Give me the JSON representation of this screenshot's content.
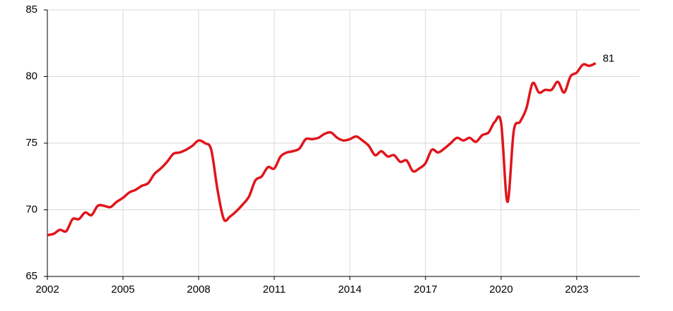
{
  "chart_data": {
    "type": "line",
    "x": [
      2002,
      2002.25,
      2002.5,
      2002.75,
      2003,
      2003.25,
      2003.5,
      2003.75,
      2004,
      2004.25,
      2004.5,
      2004.75,
      2005,
      2005.25,
      2005.5,
      2005.75,
      2006,
      2006.25,
      2006.5,
      2006.75,
      2007,
      2007.25,
      2007.5,
      2007.75,
      2008,
      2008.25,
      2008.5,
      2008.75,
      2009,
      2009.25,
      2009.5,
      2009.75,
      2010,
      2010.25,
      2010.5,
      2010.75,
      2011,
      2011.25,
      2011.5,
      2011.75,
      2012,
      2012.25,
      2012.5,
      2012.75,
      2013,
      2013.25,
      2013.5,
      2013.75,
      2014,
      2014.25,
      2014.5,
      2014.75,
      2015,
      2015.25,
      2015.5,
      2015.75,
      2016,
      2016.25,
      2016.5,
      2016.75,
      2017,
      2017.25,
      2017.5,
      2017.75,
      2018,
      2018.25,
      2018.5,
      2018.75,
      2019,
      2019.25,
      2019.5,
      2019.75,
      2020,
      2020.25,
      2020.5,
      2020.75,
      2021,
      2021.25,
      2021.5,
      2021.75,
      2022,
      2022.25,
      2022.5,
      2022.75,
      2023,
      2023.25,
      2023.5,
      2023.75
    ],
    "series": [
      {
        "color": "#e0151b",
        "values": [
          68.1,
          68.2,
          68.5,
          68.4,
          69.3,
          69.3,
          69.8,
          69.6,
          70.3,
          70.3,
          70.2,
          70.6,
          70.9,
          71.3,
          71.5,
          71.8,
          72.0,
          72.7,
          73.1,
          73.6,
          74.2,
          74.3,
          74.5,
          74.8,
          75.2,
          75.0,
          74.5,
          71.5,
          69.3,
          69.5,
          69.9,
          70.4,
          71.0,
          72.2,
          72.5,
          73.2,
          73.1,
          74.0,
          74.3,
          74.4,
          74.6,
          75.3,
          75.3,
          75.4,
          75.7,
          75.8,
          75.4,
          75.2,
          75.3,
          75.5,
          75.2,
          74.8,
          74.1,
          74.4,
          74.0,
          74.1,
          73.6,
          73.7,
          72.9,
          73.1,
          73.5,
          74.5,
          74.3,
          74.6,
          75.0,
          75.4,
          75.2,
          75.4,
          75.1,
          75.6,
          75.8,
          76.6,
          76.5,
          70.6,
          75.9,
          76.6,
          77.6,
          79.5,
          78.8,
          79.0,
          79.0,
          79.6,
          78.8,
          80.0,
          80.3,
          80.9,
          80.8,
          81
        ]
      }
    ],
    "end_label": "81",
    "xlim": [
      2002,
      2025.5
    ],
    "xticks": [
      2002,
      2005,
      2008,
      2011,
      2014,
      2017,
      2020,
      2023
    ],
    "ylim": [
      65,
      85
    ],
    "yticks": [
      65,
      70,
      75,
      80,
      85
    ],
    "grid": true
  }
}
